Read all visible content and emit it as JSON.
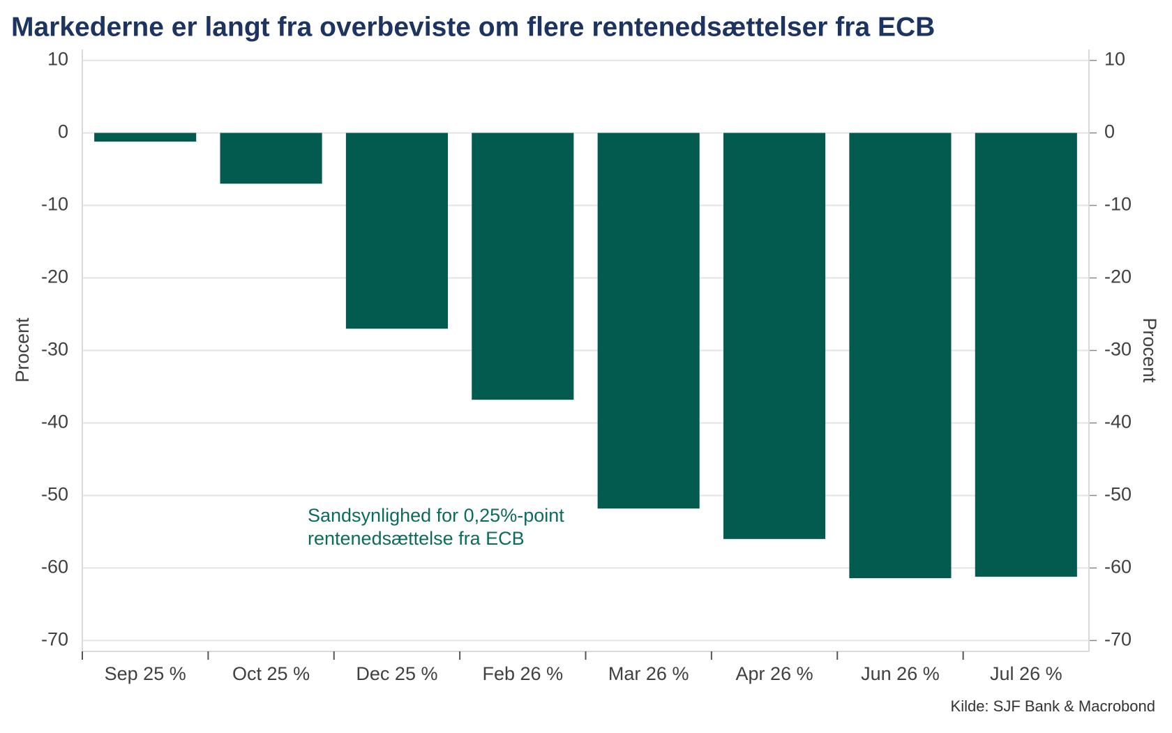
{
  "chart_data": {
    "type": "bar",
    "title": "Markederne er langt fra overbeviste om flere rentenedsættelser fra ECB",
    "categories": [
      "Sep 25 %",
      "Oct 25 %",
      "Dec 25 %",
      "Feb 26 %",
      "Mar 26 %",
      "Apr 26 %",
      "Jun 26 %",
      "Jul 26 %"
    ],
    "values": [
      -1.2,
      -7,
      -27,
      -36.8,
      -51.8,
      -56,
      -61.4,
      -61.2
    ],
    "color": "#035b4f",
    "ylabel": "Procent",
    "y2label": "Procent",
    "ylim": [
      -71.5,
      11.5
    ],
    "yticks": [
      10,
      0,
      -10,
      -20,
      -30,
      -40,
      -50,
      -60,
      -70
    ],
    "y2lim": [
      -71.5,
      11.5
    ],
    "y2ticks": [
      10,
      0,
      -10,
      -20,
      -30,
      -40,
      -50,
      -60,
      -70
    ],
    "grid": true,
    "annotation": [
      "Sandsynlighed for 0,25%-point",
      "rentenedsættelse fra ECB"
    ],
    "annotation_color": "#0b6b5c",
    "source": "Kilde: SJF Bank & Macrobond"
  }
}
